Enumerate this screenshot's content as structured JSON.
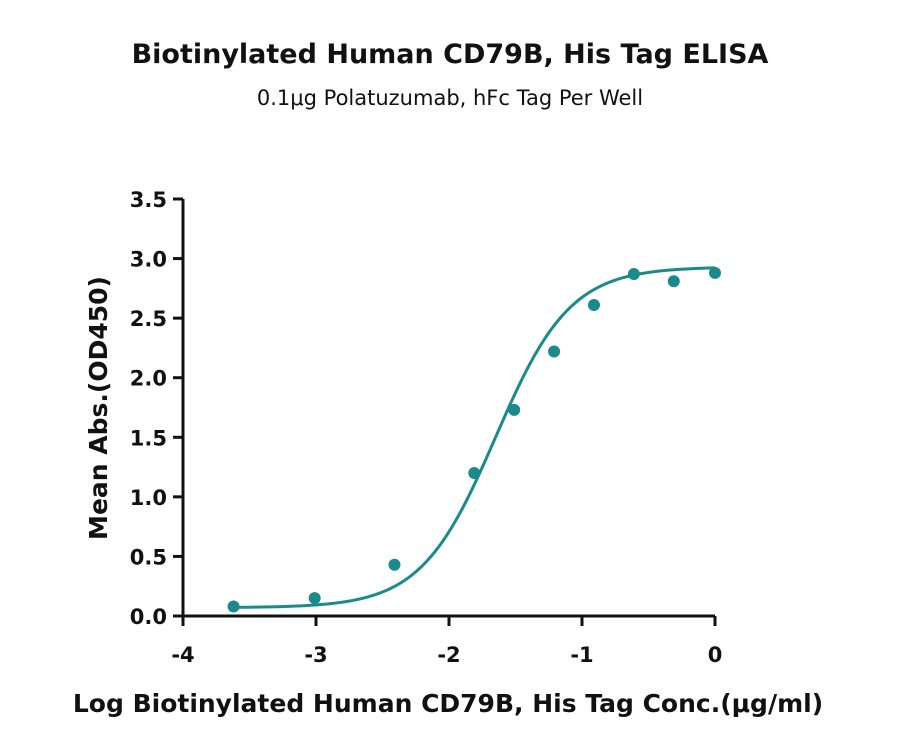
{
  "chart_data": {
    "type": "scatter",
    "title": "Biotinylated Human CD79B, His Tag ELISA",
    "subtitle": "0.1μg Polatuzumab, hFc Tag Per Well",
    "xlabel": "Log Biotinylated Human CD79B, His Tag Conc.(μg/ml)",
    "ylabel": "Mean Abs.(OD450)",
    "xlim": [
      -4,
      0
    ],
    "ylim": [
      0,
      3.5
    ],
    "x_ticks": [
      "-4",
      "-3",
      "-2",
      "-1",
      "0"
    ],
    "y_ticks": [
      "0.0",
      "0.5",
      "1.0",
      "1.5",
      "2.0",
      "2.5",
      "3.0",
      "3.5"
    ],
    "grid": false,
    "series": [
      {
        "color": "#1a8a8a",
        "points": [
          {
            "x": -3.62,
            "y": 0.08
          },
          {
            "x": -3.01,
            "y": 0.15
          },
          {
            "x": -2.41,
            "y": 0.43
          },
          {
            "x": -1.81,
            "y": 1.2
          },
          {
            "x": -1.51,
            "y": 1.73
          },
          {
            "x": -1.21,
            "y": 2.22
          },
          {
            "x": -0.91,
            "y": 2.61
          },
          {
            "x": -0.61,
            "y": 2.87
          },
          {
            "x": -0.31,
            "y": 2.81
          },
          {
            "x": 0.0,
            "y": 2.88
          }
        ],
        "fit": "4PL sigmoid"
      }
    ]
  }
}
